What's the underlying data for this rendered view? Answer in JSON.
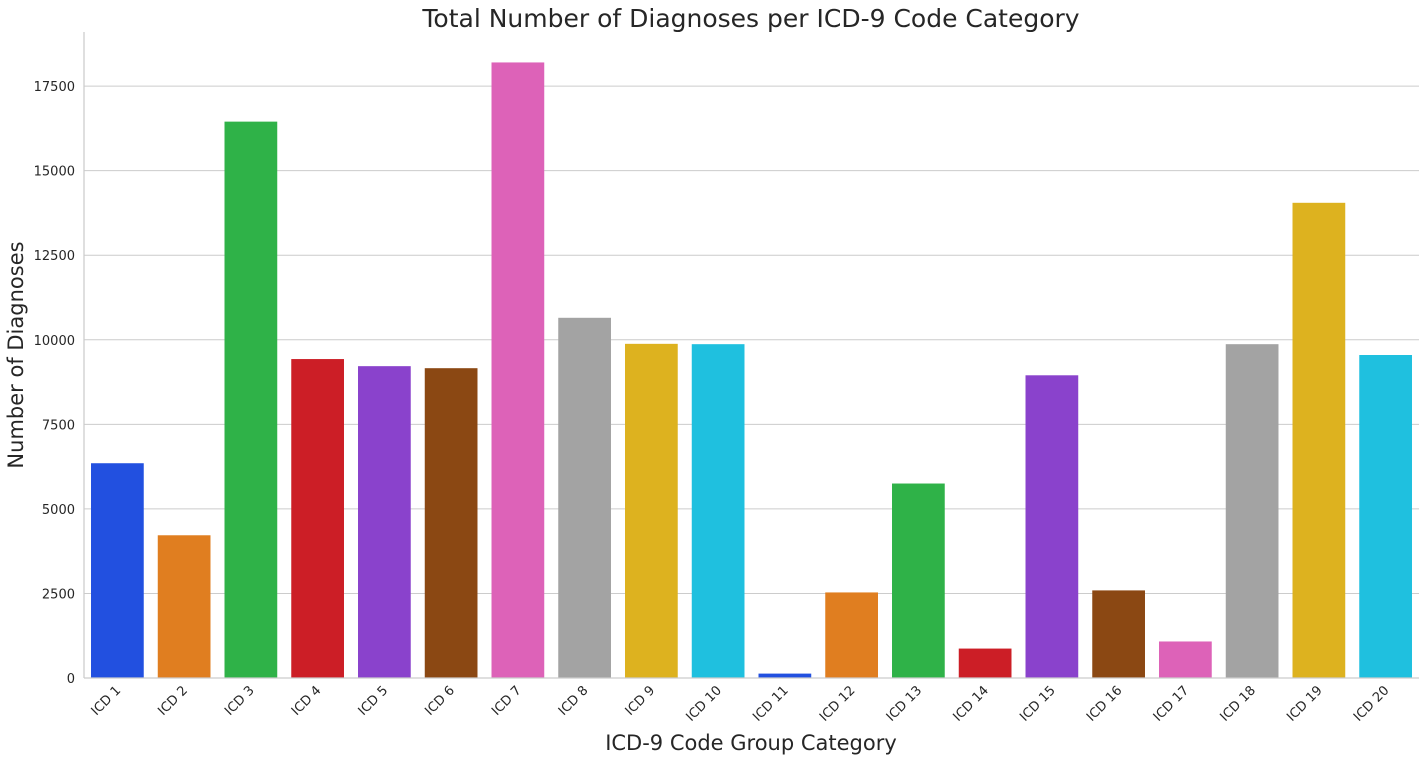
{
  "chart_data": {
    "type": "bar",
    "title": "Total Number of Diagnoses per ICD-9 Code Category",
    "xlabel": "ICD-9 Code Group Category",
    "ylabel": "Number of Diagnoses",
    "ylim": [
      0,
      19100
    ],
    "yticks": [
      0,
      2500,
      5000,
      7500,
      10000,
      12500,
      15000,
      17500
    ],
    "ytick_labels": [
      "0",
      "2500",
      "5000",
      "7500",
      "10000",
      "12500",
      "15000",
      "17500"
    ],
    "grid": true,
    "grid_axis": "y",
    "legend": "none",
    "categories": [
      "ICD 1",
      "ICD 2",
      "ICD 3",
      "ICD 4",
      "ICD 5",
      "ICD 6",
      "ICD 7",
      "ICD 8",
      "ICD 9",
      "ICD 10",
      "ICD 11",
      "ICD 12",
      "ICD 13",
      "ICD 14",
      "ICD 15",
      "ICD 16",
      "ICD 17",
      "ICD 18",
      "ICD 19",
      "ICD 20"
    ],
    "values": [
      6350,
      4220,
      16450,
      9430,
      9220,
      9160,
      18200,
      10650,
      9880,
      9870,
      130,
      2530,
      5750,
      870,
      8950,
      2590,
      1080,
      9870,
      14050,
      9550
    ],
    "colors": [
      "#2250e0",
      "#e07e20",
      "#2fb248",
      "#cc1e26",
      "#8a42cc",
      "#8b4813",
      "#dd62b8",
      "#a3a3a3",
      "#ddb21f",
      "#1fc0df",
      "#2250e0",
      "#e07e20",
      "#2fb248",
      "#cc1e26",
      "#8a42cc",
      "#8b4813",
      "#dd62b8",
      "#a3a3a3",
      "#ddb21f",
      "#1fc0df"
    ]
  }
}
